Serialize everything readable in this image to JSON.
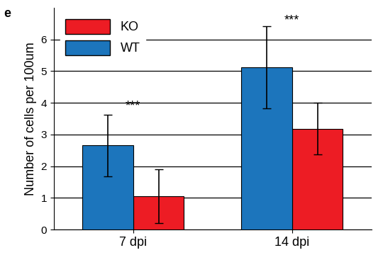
{
  "chart_data": {
    "type": "bar",
    "panel_label": "e",
    "y_label": "Number of cells per 100um",
    "categories": [
      "7 dpi",
      "14 dpi"
    ],
    "series": [
      {
        "name": "KO",
        "color": "#ed1c24",
        "values": [
          1.05,
          3.18
        ],
        "errors": [
          0.85,
          0.82
        ]
      },
      {
        "name": "WT",
        "color": "#1c75bc",
        "values": [
          2.65,
          5.12
        ],
        "errors": [
          0.97,
          1.3
        ]
      }
    ],
    "annotations": [
      {
        "text": "***",
        "category": "7 dpi",
        "value": 3.9
      },
      {
        "text": "***",
        "category": "14 dpi",
        "value": 6.6
      }
    ],
    "ylim": [
      0,
      7
    ],
    "yticks": [
      0,
      1,
      2,
      3,
      4,
      5,
      6
    ],
    "grid": true,
    "legend": "upper left"
  }
}
